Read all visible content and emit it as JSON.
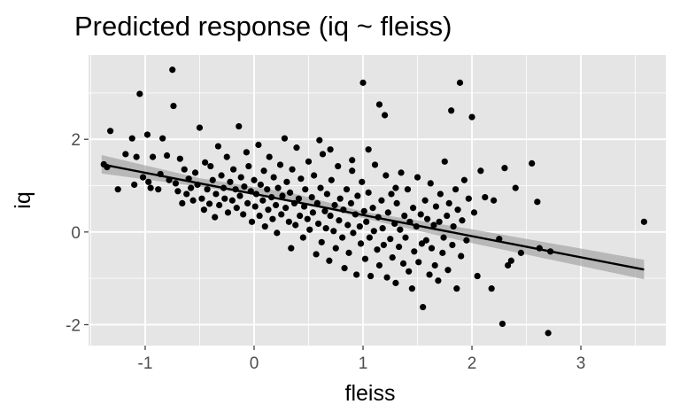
{
  "chart_data": {
    "type": "scatter",
    "title": "Predicted response (iq ~ fleiss)",
    "xlabel": "fleiss",
    "ylabel": "iq",
    "xlim": [
      -1.52,
      3.78
    ],
    "ylim": [
      -2.45,
      3.82
    ],
    "x_ticks": [
      -1,
      0,
      1,
      2,
      3
    ],
    "x_tick_labels": [
      "-1",
      "0",
      "1",
      "2",
      "3"
    ],
    "y_ticks": [
      -2,
      0,
      2
    ],
    "y_tick_labels": [
      "-2",
      "0",
      "2"
    ],
    "grid": true,
    "legend": "none",
    "colors": {
      "panel": "#e5e5e5",
      "grid": "#ffffff",
      "points": "#000000",
      "line": "#000000",
      "band": "#999999"
    },
    "regression_line": {
      "x": [
        -1.4,
        3.58
      ],
      "y": [
        1.46,
        -0.81
      ]
    },
    "confidence_band": {
      "x": [
        -1.4,
        -0.5,
        0.35,
        1.0,
        2.0,
        3.58
      ],
      "lower": [
        1.26,
        0.98,
        0.68,
        0.3,
        -0.24,
        -1.02
      ],
      "upper": [
        1.66,
        1.16,
        0.84,
        0.44,
        0.06,
        -0.6
      ]
    },
    "points": [
      [
        -1.38,
        1.46
      ],
      [
        -1.35,
        1.4
      ],
      [
        -1.32,
        2.18
      ],
      [
        -1.25,
        0.92
      ],
      [
        -1.18,
        1.68
      ],
      [
        -1.12,
        2.02
      ],
      [
        -1.1,
        1.02
      ],
      [
        -1.08,
        1.62
      ],
      [
        -1.05,
        2.98
      ],
      [
        -1.02,
        1.18
      ],
      [
        -0.98,
        2.1
      ],
      [
        -0.97,
        1.08
      ],
      [
        -0.95,
        0.95
      ],
      [
        -0.93,
        1.62
      ],
      [
        -0.88,
        0.92
      ],
      [
        -0.86,
        1.25
      ],
      [
        -0.84,
        2.02
      ],
      [
        -0.8,
        1.65
      ],
      [
        -0.78,
        1.12
      ],
      [
        -0.75,
        3.5
      ],
      [
        -0.74,
        2.72
      ],
      [
        -0.72,
        1.05
      ],
      [
        -0.7,
        0.88
      ],
      [
        -0.68,
        1.58
      ],
      [
        -0.66,
        0.62
      ],
      [
        -0.64,
        1.35
      ],
      [
        -0.62,
        0.82
      ],
      [
        -0.6,
        1.15
      ],
      [
        -0.58,
        0.95
      ],
      [
        -0.56,
        0.68
      ],
      [
        -0.54,
        1.28
      ],
      [
        -0.52,
        1.02
      ],
      [
        -0.5,
        2.25
      ],
      [
        -0.48,
        0.72
      ],
      [
        -0.46,
        0.48
      ],
      [
        -0.45,
        1.5
      ],
      [
        -0.43,
        0.92
      ],
      [
        -0.41,
        0.61
      ],
      [
        -0.4,
        1.42
      ],
      [
        -0.38,
        1.12
      ],
      [
        -0.36,
        0.32
      ],
      [
        -0.35,
        0.82
      ],
      [
        -0.33,
        1.85
      ],
      [
        -0.32,
        0.58
      ],
      [
        -0.3,
        1.22
      ],
      [
        -0.28,
        0.95
      ],
      [
        -0.27,
        0.72
      ],
      [
        -0.25,
        1.62
      ],
      [
        -0.24,
        0.42
      ],
      [
        -0.22,
        1.08
      ],
      [
        -0.2,
        0.68
      ],
      [
        -0.19,
        1.35
      ],
      [
        -0.17,
        0.92
      ],
      [
        -0.16,
        0.52
      ],
      [
        -0.14,
        2.28
      ],
      [
        -0.13,
        0.78
      ],
      [
        -0.12,
        1.18
      ],
      [
        -0.1,
        0.38
      ],
      [
        -0.09,
        0.98
      ],
      [
        -0.07,
        1.72
      ],
      [
        -0.06,
        0.62
      ],
      [
        -0.05,
        1.42
      ],
      [
        -0.03,
        0.88
      ],
      [
        -0.02,
        0.22
      ],
      [
        0.0,
        1.12
      ],
      [
        0.01,
        0.55
      ],
      [
        0.02,
        0.82
      ],
      [
        0.04,
        1.88
      ],
      [
        0.05,
        0.35
      ],
      [
        0.06,
        1.02
      ],
      [
        0.08,
        0.68
      ],
      [
        0.09,
        1.32
      ],
      [
        0.1,
        0.12
      ],
      [
        0.12,
        0.92
      ],
      [
        0.13,
        0.48
      ],
      [
        0.14,
        1.62
      ],
      [
        0.16,
        0.75
      ],
      [
        0.17,
        0.28
      ],
      [
        0.18,
        1.18
      ],
      [
        0.2,
        0.58
      ],
      [
        0.21,
        -0.02
      ],
      [
        0.22,
        0.95
      ],
      [
        0.24,
        1.45
      ],
      [
        0.25,
        0.38
      ],
      [
        0.26,
        0.78
      ],
      [
        0.28,
        2.02
      ],
      [
        0.29,
        0.52
      ],
      [
        0.3,
        1.08
      ],
      [
        0.32,
        0.22
      ],
      [
        0.33,
        0.85
      ],
      [
        0.34,
        -0.35
      ],
      [
        0.35,
        1.35
      ],
      [
        0.37,
        0.62
      ],
      [
        0.38,
        0.15
      ],
      [
        0.39,
        1.82
      ],
      [
        0.41,
        0.72
      ],
      [
        0.42,
        0.35
      ],
      [
        0.43,
        1.15
      ],
      [
        0.45,
        -0.12
      ],
      [
        0.46,
        0.55
      ],
      [
        0.47,
        0.92
      ],
      [
        0.49,
        0.28
      ],
      [
        0.5,
        1.52
      ],
      [
        0.51,
        0.05
      ],
      [
        0.53,
        0.75
      ],
      [
        0.54,
        0.42
      ],
      [
        0.55,
        1.22
      ],
      [
        0.57,
        -0.48
      ],
      [
        0.58,
        0.62
      ],
      [
        0.59,
        0.18
      ],
      [
        0.61,
        0.95
      ],
      [
        0.62,
        -0.22
      ],
      [
        0.63,
        1.68
      ],
      [
        0.65,
        0.45
      ],
      [
        0.66,
        0.08
      ],
      [
        0.67,
        0.82
      ],
      [
        0.69,
        -0.62
      ],
      [
        0.7,
        0.35
      ],
      [
        0.71,
        1.12
      ],
      [
        0.73,
        0.02
      ],
      [
        0.74,
        0.58
      ],
      [
        0.75,
        -0.35
      ],
      [
        0.77,
        1.42
      ],
      [
        0.78,
        0.25
      ],
      [
        0.79,
        0.72
      ],
      [
        0.81,
        -0.12
      ],
      [
        0.82,
        0.48
      ],
      [
        0.83,
        -0.78
      ],
      [
        0.85,
        0.92
      ],
      [
        0.86,
        0.15
      ],
      [
        0.87,
        -0.45
      ],
      [
        0.89,
        0.62
      ],
      [
        0.9,
        1.32
      ],
      [
        0.91,
        -0.02
      ],
      [
        0.93,
        0.38
      ],
      [
        0.94,
        -0.92
      ],
      [
        0.95,
        0.78
      ],
      [
        0.97,
        0.12
      ],
      [
        0.98,
        -0.25
      ],
      [
        0.99,
        1.08
      ],
      [
        1.01,
        0.45
      ],
      [
        1.02,
        -0.58
      ],
      [
        1.03,
        0.22
      ],
      [
        1.05,
        0.85
      ],
      [
        1.06,
        -0.12
      ],
      [
        1.07,
        -0.95
      ],
      [
        1.09,
        0.52
      ],
      [
        1.1,
        0.02
      ],
      [
        1.11,
        1.45
      ],
      [
        1.13,
        -0.38
      ],
      [
        1.14,
        0.32
      ],
      [
        1.15,
        -0.72
      ],
      [
        1.17,
        0.68
      ],
      [
        1.18,
        0.08
      ],
      [
        1.19,
        -0.28
      ],
      [
        1.21,
        1.22
      ],
      [
        1.22,
        -0.98
      ],
      [
        1.23,
        0.42
      ],
      [
        1.25,
        -0.15
      ],
      [
        1.26,
        0.82
      ],
      [
        1.27,
        -0.55
      ],
      [
        1.29,
        0.18
      ],
      [
        1.3,
        -1.1
      ],
      [
        1.31,
        0.62
      ],
      [
        1.33,
        -0.32
      ],
      [
        1.34,
        0.05
      ],
      [
        1.35,
        1.28
      ],
      [
        1.37,
        -0.68
      ],
      [
        1.38,
        0.35
      ],
      [
        1.39,
        -0.12
      ],
      [
        1.41,
        0.92
      ],
      [
        1.42,
        -0.85
      ],
      [
        1.43,
        0.22
      ],
      [
        1.45,
        -1.22
      ],
      [
        1.46,
        0.52
      ],
      [
        1.47,
        -0.42
      ],
      [
        1.49,
        0.12
      ],
      [
        1.5,
        1.18
      ],
      [
        1.51,
        -0.65
      ],
      [
        1.53,
        0.38
      ],
      [
        1.54,
        -0.25
      ],
      [
        1.55,
        -1.62
      ],
      [
        1.57,
        0.68
      ],
      [
        1.58,
        -0.18
      ],
      [
        1.59,
        0.28
      ],
      [
        1.61,
        -0.92
      ],
      [
        1.62,
        1.05
      ],
      [
        1.63,
        -0.35
      ],
      [
        1.65,
        0.15
      ],
      [
        1.66,
        -0.72
      ],
      [
        1.67,
        0.55
      ],
      [
        1.69,
        -1.05
      ],
      [
        1.7,
        0.22
      ],
      [
        1.71,
        0.82
      ],
      [
        1.73,
        -0.45
      ],
      [
        1.74,
        -0.12
      ],
      [
        1.75,
        1.52
      ],
      [
        1.77,
        0.35
      ],
      [
        1.78,
        -0.82
      ],
      [
        1.79,
        0.62
      ],
      [
        1.81,
        2.62
      ],
      [
        1.82,
        -0.28
      ],
      [
        1.83,
        0.12
      ],
      [
        1.85,
        0.92
      ],
      [
        1.86,
        -1.22
      ],
      [
        1.87,
        0.48
      ],
      [
        1.89,
        3.22
      ],
      [
        1.9,
        -0.52
      ],
      [
        1.91,
        0.25
      ],
      [
        1.93,
        1.12
      ],
      [
        1.95,
        -0.18
      ],
      [
        1.97,
        0.72
      ],
      [
        2.0,
        2.48
      ],
      [
        2.02,
        0.42
      ],
      [
        2.05,
        -0.95
      ],
      [
        2.08,
        1.32
      ],
      [
        2.12,
        0.75
      ],
      [
        2.18,
        -1.22
      ],
      [
        2.2,
        0.68
      ],
      [
        2.25,
        -0.15
      ],
      [
        2.28,
        -1.98
      ],
      [
        2.3,
        1.38
      ],
      [
        2.33,
        -0.72
      ],
      [
        2.36,
        -0.62
      ],
      [
        2.4,
        0.95
      ],
      [
        2.45,
        -0.45
      ],
      [
        2.55,
        1.48
      ],
      [
        2.6,
        0.65
      ],
      [
        2.62,
        -0.35
      ],
      [
        2.7,
        -2.18
      ],
      [
        2.72,
        -0.42
      ],
      [
        3.58,
        0.22
      ],
      [
        1.0,
        3.22
      ],
      [
        1.15,
        2.75
      ],
      [
        1.2,
        2.52
      ],
      [
        1.3,
        0.95
      ],
      [
        0.6,
        1.98
      ],
      [
        0.7,
        1.78
      ],
      [
        0.9,
        1.55
      ],
      [
        1.05,
        1.78
      ]
    ]
  }
}
